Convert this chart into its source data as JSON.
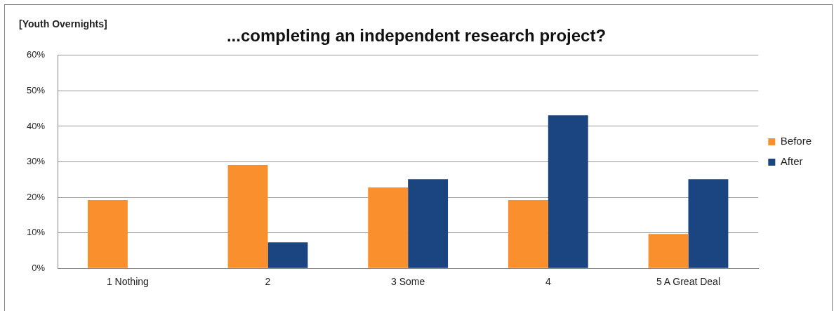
{
  "chart_data": {
    "type": "bar",
    "title": "...completing an independent research project?",
    "subtitle": "[Youth Overnights]",
    "categories": [
      "1 Nothing",
      "2",
      "3 Some",
      "4",
      "5 A Great Deal"
    ],
    "series": [
      {
        "name": "Before",
        "color": "#fa8f2d",
        "values": [
          19.2,
          29.1,
          22.8,
          19.2,
          9.7
        ]
      },
      {
        "name": "After",
        "color": "#1b4580",
        "values": [
          0,
          7.3,
          25.1,
          43.1,
          25.1
        ]
      }
    ],
    "ylim": [
      0,
      60
    ],
    "yticks": [
      {
        "value": 0,
        "label": "0%"
      },
      {
        "value": 10,
        "label": "10%"
      },
      {
        "value": 20,
        "label": "20%"
      },
      {
        "value": 30,
        "label": "30%"
      },
      {
        "value": 40,
        "label": "40%"
      },
      {
        "value": 50,
        "label": "50%"
      },
      {
        "value": 60,
        "label": "60%"
      }
    ],
    "grid": "y",
    "legend": "right"
  }
}
